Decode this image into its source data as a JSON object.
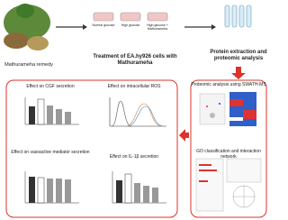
{
  "top": {
    "remedy": "Mathurameha remedy",
    "flasks": [
      "Normal glucose",
      "High glucose",
      "High glucose + Mathurameha"
    ],
    "treatment": "Treatment of EA.hy926 cells with Mathurameha",
    "protein": "Protein extraction and proteomic analysis"
  },
  "left_panels": [
    "Effect on CGF secretion",
    "Effect on intracellular ROS",
    "Effect on vasoactive mediator secretion",
    "Effect on IL-1β secretion"
  ],
  "right_panels": [
    "Proteomic analysis using SWATH-MS",
    "GO classification and interaction network"
  ]
}
